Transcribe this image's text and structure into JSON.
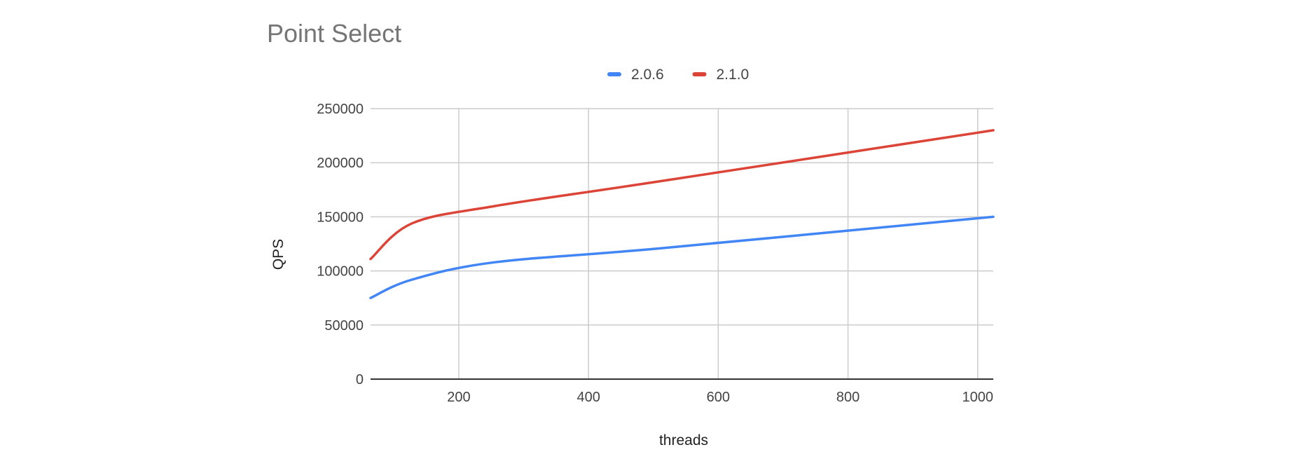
{
  "chart_data": {
    "type": "line",
    "title": "Point Select",
    "xlabel": "threads",
    "ylabel": "QPS",
    "x": [
      64,
      128,
      256,
      512,
      1024
    ],
    "series": [
      {
        "name": "2.0.6",
        "color": "#4285f4",
        "values": [
          75000,
          92000,
          108000,
          121000,
          150000
        ]
      },
      {
        "name": "2.1.0",
        "color": "#db4437",
        "values": [
          111000,
          144000,
          160000,
          183000,
          230000
        ]
      }
    ],
    "xlim": [
      64,
      1024
    ],
    "ylim": [
      0,
      250000
    ],
    "xticks": [
      200,
      400,
      600,
      800,
      1000
    ],
    "yticks": [
      0,
      50000,
      100000,
      150000,
      200000,
      250000
    ],
    "grid": true,
    "legend_position": "top"
  }
}
